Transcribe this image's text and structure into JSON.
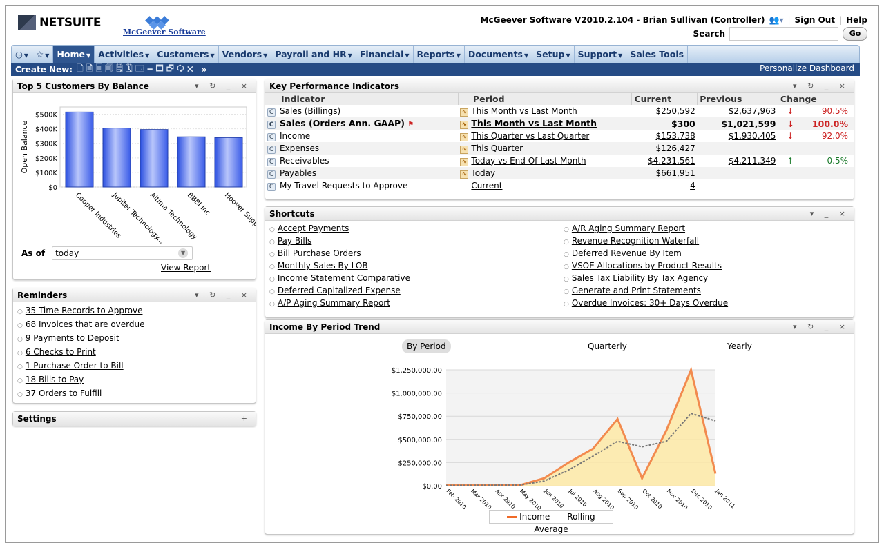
{
  "header": {
    "brand": "NETSUITE",
    "company_logo": "McGeever Software",
    "app_version": "McGeever Software V2010.2.104 - Brian Sullivan (Controller)",
    "sign_out": "Sign Out",
    "help": "Help",
    "search_label": "Search",
    "search_value": "",
    "go": "Go"
  },
  "menu": [
    "Home",
    "Activities",
    "Customers",
    "Vendors",
    "Payroll and HR",
    "Financial",
    "Reports",
    "Documents",
    "Setup",
    "Support",
    "Sales Tools"
  ],
  "create_bar": {
    "label": "Create New:",
    "icons": "🗋🗎🗏🗐🗒🗓🗔🗕🗖🗗🗘🗙",
    "more": "»",
    "personalize": "Personalize Dashboard"
  },
  "customers": {
    "title": "Top 5 Customers By Balance",
    "as_of_label": "As of",
    "as_of_value": "today",
    "view_report": "View Report",
    "chart_data": {
      "type": "bar",
      "ylabel": "Open Balance",
      "yticks": [
        "$0",
        "$100K",
        "$200K",
        "$300K",
        "$400K",
        "$500K"
      ],
      "ylim": [
        0,
        550000
      ],
      "categories": [
        "Cooper Industries",
        "Jupiter Technology...",
        "Altima Technology",
        "BBBI Inc",
        "Hoover Supply"
      ],
      "values": [
        515000,
        405000,
        395000,
        345000,
        340000
      ]
    }
  },
  "reminders": {
    "title": "Reminders",
    "items": [
      "35 Time Records to Approve",
      "68 Invoices that are overdue",
      "9 Payments to Deposit",
      "6 Checks to Print",
      "1 Purchase Order to Bill",
      "18 Bills to Pay",
      "37 Orders to Fulfill"
    ]
  },
  "settings": {
    "title": "Settings",
    "plus": "+"
  },
  "kpi": {
    "title": "Key Performance Indicators",
    "cols": [
      "Indicator",
      "Period",
      "Current",
      "Previous",
      "Change"
    ],
    "rows": [
      {
        "ind": "Sales (Billings)",
        "per": "This Month vs Last Month",
        "cur": "$250,592",
        "prev": "$2,637,963",
        "chg": "90.5%",
        "dir": "down"
      },
      {
        "ind": "Sales (Orders Ann. GAAP)",
        "per": "This Month vs Last Month",
        "cur": "$300",
        "prev": "$1,021,599",
        "chg": "100.0%",
        "dir": "down"
      },
      {
        "ind": "Income",
        "per": "This Quarter vs Last Quarter",
        "cur": "$153,738",
        "prev": "$1,930,405",
        "chg": "92.0%",
        "dir": "down"
      },
      {
        "ind": "Expenses",
        "per": "This Quarter",
        "cur": "$126,427",
        "prev": "",
        "chg": "",
        "dir": ""
      },
      {
        "ind": "Receivables",
        "per": "Today vs End Of Last Month",
        "cur": "$4,231,561",
        "prev": "$4,211,349",
        "chg": "0.5%",
        "dir": "up"
      },
      {
        "ind": "Payables",
        "per": "Today",
        "cur": "$661,951",
        "prev": "",
        "chg": "",
        "dir": ""
      },
      {
        "ind": "My Travel Requests to Approve",
        "per": "Current",
        "cur": "4",
        "prev": "",
        "chg": "",
        "dir": ""
      }
    ]
  },
  "shortcuts": {
    "title": "Shortcuts",
    "left": [
      "Accept Payments",
      "Pay Bills",
      "Bill Purchase Orders",
      "Monthly Sales By LOB",
      "Income Statement Comparative",
      "Deferred Capitalized Expense",
      "A/P Aging Summary Report"
    ],
    "right": [
      "A/R Aging Summary Report",
      "Revenue Recognition Waterfall",
      "Deferred Revenue By Item",
      "VSOE Allocations by Product Results",
      "Sales Tax Liability By Tax Agency",
      "Generate and Print Statements",
      "Overdue Invoices: 30+ Days Overdue"
    ]
  },
  "income": {
    "title": "Income By Period Trend",
    "tabs": [
      "By Period",
      "Quarterly",
      "Yearly"
    ],
    "legend": {
      "income": "Income",
      "avg": "Rolling Average"
    },
    "chart_data": {
      "type": "area",
      "yticks": [
        "$0.00",
        "$250,000.00",
        "$500,000.00",
        "$750,000.00",
        "$1,000,000.00",
        "$1,250,000.00"
      ],
      "ylim": [
        0,
        1250000
      ],
      "x": [
        "Feb 2010",
        "Mar 2010",
        "Apr 2010",
        "May 2010",
        "Jun 2010",
        "Jul 2010",
        "Aug 2010",
        "Sep 2010",
        "Oct 2010",
        "Nov 2010",
        "Dec 2010",
        "Jan 2011"
      ],
      "series": [
        {
          "name": "Income",
          "values": [
            5000,
            10000,
            8000,
            5000,
            80000,
            250000,
            400000,
            720000,
            80000,
            600000,
            1250000,
            130000
          ]
        },
        {
          "name": "Rolling Average",
          "values": [
            3000,
            5000,
            6000,
            7000,
            50000,
            170000,
            320000,
            480000,
            420000,
            480000,
            780000,
            700000
          ]
        }
      ]
    }
  },
  "colors": {
    "menu_dark": "#254b85",
    "bar_blue": "#4a6ef0",
    "income_line": "#f28a4e",
    "income_fill": "#fde9a6"
  }
}
